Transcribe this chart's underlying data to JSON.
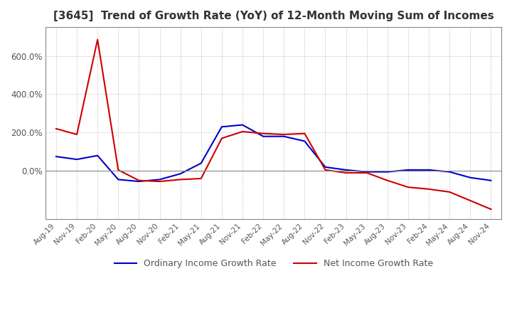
{
  "title": "[3645]  Trend of Growth Rate (YoY) of 12-Month Moving Sum of Incomes",
  "title_fontsize": 11,
  "legend_labels": [
    "Ordinary Income Growth Rate",
    "Net Income Growth Rate"
  ],
  "line_colors": [
    "#0000cc",
    "#cc0000"
  ],
  "x_labels": [
    "Aug-19",
    "Nov-19",
    "Feb-20",
    "May-20",
    "Aug-20",
    "Nov-20",
    "Feb-21",
    "May-21",
    "Aug-21",
    "Nov-21",
    "Feb-22",
    "May-22",
    "Aug-22",
    "Nov-22",
    "Feb-23",
    "May-23",
    "Aug-23",
    "Nov-23",
    "Feb-24",
    "May-24",
    "Aug-24",
    "Nov-24"
  ],
  "ordinary_income": [
    0.75,
    0.6,
    0.8,
    -0.45,
    -0.55,
    -0.45,
    -0.15,
    0.4,
    2.3,
    2.4,
    1.8,
    1.8,
    1.55,
    0.2,
    0.05,
    -0.05,
    -0.05,
    0.05,
    0.05,
    -0.05,
    -0.35,
    -0.5
  ],
  "net_income": [
    2.2,
    1.9,
    6.85,
    0.05,
    -0.5,
    -0.55,
    -0.45,
    -0.4,
    1.7,
    2.05,
    1.95,
    1.9,
    1.95,
    0.05,
    -0.1,
    -0.1,
    -0.5,
    -0.85,
    -0.95,
    -1.1,
    -1.55,
    -2.0
  ],
  "ylim_min": -2.5,
  "ylim_max": 7.5,
  "yticks": [
    0.0,
    2.0,
    4.0,
    6.0
  ],
  "ytick_labels": [
    "0.0%",
    "200.0%",
    "400.0%",
    "600.0%"
  ],
  "background_color": "#ffffff",
  "grid_color": "#aaaaaa",
  "spine_color": "#888888"
}
